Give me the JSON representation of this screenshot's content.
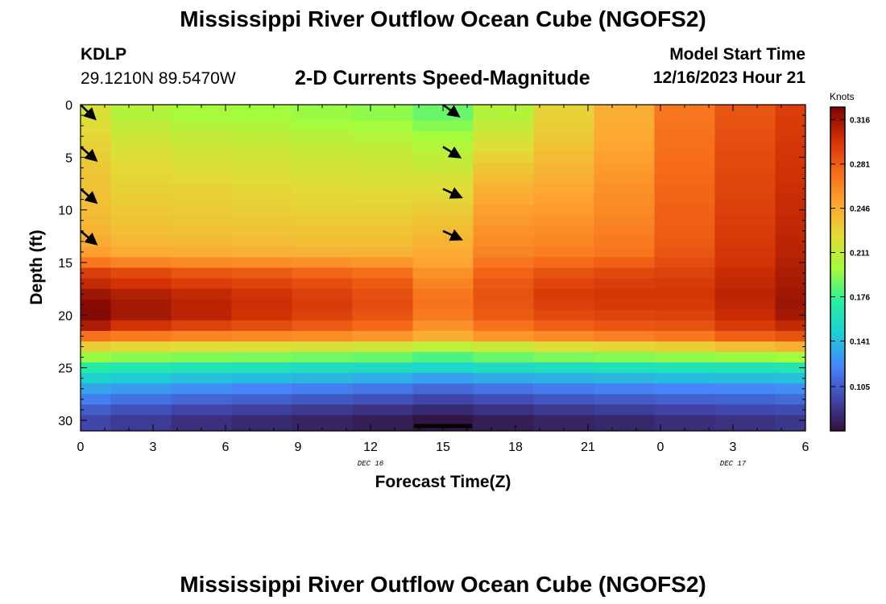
{
  "header": {
    "title": "Mississippi River Outflow Ocean Cube (NGOFS2)",
    "station": "KDLP",
    "location": "29.1210N  89.5470W",
    "model_start_label": "Model Start Time",
    "model_start_value": "12/16/2023 Hour 21"
  },
  "footer": {
    "title": "Mississippi River Outflow Ocean Cube (NGOFS2)"
  },
  "chart_data": {
    "type": "heatmap",
    "title": "2-D Currents Speed-Magnitude",
    "xlabel": "Forecast Time(Z)",
    "ylabel": "Depth (ft)",
    "x_tick_labels": [
      "0",
      "3",
      "6",
      "9",
      "12",
      "15",
      "18",
      "21",
      "0",
      "3",
      "6"
    ],
    "x_range_hours": [
      0,
      30
    ],
    "date_labels": [
      {
        "text": "DEC 16",
        "hour": 12
      },
      {
        "text": "DEC 17",
        "hour": 27
      }
    ],
    "y_tick_labels": [
      "0",
      "5",
      "10",
      "15",
      "20",
      "25",
      "30"
    ],
    "ylim": [
      0,
      31
    ],
    "y_inverted": true,
    "colorbar": {
      "unit_label": "Knots",
      "tick_labels": [
        "0.316",
        "0.281",
        "0.246",
        "0.211",
        "0.176",
        "0.141",
        "0.105"
      ],
      "range": [
        0.07,
        0.326
      ],
      "colors": [
        "#30123b",
        "#4146ac",
        "#4686fa",
        "#1bcfd4",
        "#29ef9f",
        "#a3fc3c",
        "#e2dc38",
        "#fea632",
        "#f66b19",
        "#d23105",
        "#7a0403"
      ]
    },
    "time_columns_hours": [
      0,
      2.5,
      5,
      7.5,
      10,
      12.5,
      15,
      17.5,
      20,
      22.5,
      25,
      27.5,
      30
    ],
    "depth_rows_ft": [
      1,
      2,
      3,
      4,
      5,
      6,
      7,
      8,
      9,
      10,
      11,
      12,
      13,
      14,
      15,
      16,
      17,
      18,
      19,
      20,
      21,
      22,
      23,
      24,
      25,
      26,
      27,
      28,
      29,
      30
    ],
    "speed_knots": [
      [
        0.22,
        0.205,
        0.2,
        0.198,
        0.196,
        0.194,
        0.186,
        0.205,
        0.228,
        0.245,
        0.27,
        0.285,
        0.295
      ],
      [
        0.223,
        0.21,
        0.205,
        0.203,
        0.2,
        0.198,
        0.192,
        0.21,
        0.23,
        0.246,
        0.271,
        0.286,
        0.296
      ],
      [
        0.226,
        0.215,
        0.211,
        0.209,
        0.206,
        0.204,
        0.198,
        0.216,
        0.233,
        0.248,
        0.272,
        0.287,
        0.297
      ],
      [
        0.229,
        0.219,
        0.215,
        0.213,
        0.211,
        0.209,
        0.204,
        0.222,
        0.236,
        0.25,
        0.273,
        0.288,
        0.298
      ],
      [
        0.231,
        0.222,
        0.219,
        0.217,
        0.215,
        0.213,
        0.209,
        0.228,
        0.239,
        0.252,
        0.274,
        0.289,
        0.299
      ],
      [
        0.233,
        0.225,
        0.222,
        0.22,
        0.218,
        0.217,
        0.214,
        0.234,
        0.242,
        0.254,
        0.275,
        0.29,
        0.3
      ],
      [
        0.235,
        0.227,
        0.225,
        0.223,
        0.221,
        0.22,
        0.219,
        0.239,
        0.245,
        0.256,
        0.276,
        0.291,
        0.301
      ],
      [
        0.236,
        0.229,
        0.228,
        0.226,
        0.224,
        0.223,
        0.223,
        0.244,
        0.248,
        0.258,
        0.277,
        0.292,
        0.302
      ],
      [
        0.237,
        0.231,
        0.23,
        0.228,
        0.227,
        0.226,
        0.227,
        0.248,
        0.251,
        0.26,
        0.278,
        0.293,
        0.303
      ],
      [
        0.238,
        0.233,
        0.232,
        0.23,
        0.229,
        0.229,
        0.231,
        0.252,
        0.254,
        0.262,
        0.279,
        0.294,
        0.304
      ],
      [
        0.24,
        0.235,
        0.234,
        0.233,
        0.232,
        0.232,
        0.235,
        0.255,
        0.257,
        0.264,
        0.28,
        0.295,
        0.305
      ],
      [
        0.243,
        0.238,
        0.237,
        0.236,
        0.235,
        0.235,
        0.239,
        0.258,
        0.26,
        0.266,
        0.281,
        0.296,
        0.306
      ],
      [
        0.246,
        0.241,
        0.24,
        0.239,
        0.238,
        0.238,
        0.243,
        0.261,
        0.263,
        0.268,
        0.282,
        0.297,
        0.307
      ],
      [
        0.252,
        0.247,
        0.245,
        0.244,
        0.243,
        0.243,
        0.246,
        0.264,
        0.266,
        0.27,
        0.284,
        0.298,
        0.308
      ],
      [
        0.27,
        0.265,
        0.262,
        0.26,
        0.258,
        0.256,
        0.25,
        0.27,
        0.275,
        0.28,
        0.288,
        0.3,
        0.31
      ],
      [
        0.295,
        0.29,
        0.285,
        0.282,
        0.278,
        0.274,
        0.258,
        0.278,
        0.286,
        0.29,
        0.293,
        0.303,
        0.312
      ],
      [
        0.305,
        0.3,
        0.295,
        0.292,
        0.288,
        0.282,
        0.265,
        0.283,
        0.292,
        0.295,
        0.296,
        0.305,
        0.313
      ],
      [
        0.316,
        0.31,
        0.305,
        0.3,
        0.294,
        0.287,
        0.27,
        0.286,
        0.296,
        0.298,
        0.298,
        0.307,
        0.315
      ],
      [
        0.322,
        0.314,
        0.308,
        0.302,
        0.296,
        0.288,
        0.271,
        0.285,
        0.294,
        0.297,
        0.297,
        0.306,
        0.316
      ],
      [
        0.323,
        0.314,
        0.307,
        0.3,
        0.293,
        0.285,
        0.268,
        0.282,
        0.29,
        0.292,
        0.293,
        0.303,
        0.314
      ],
      [
        0.312,
        0.3,
        0.293,
        0.288,
        0.282,
        0.276,
        0.258,
        0.272,
        0.28,
        0.284,
        0.286,
        0.296,
        0.305
      ],
      [
        0.272,
        0.268,
        0.264,
        0.262,
        0.26,
        0.256,
        0.246,
        0.256,
        0.262,
        0.266,
        0.27,
        0.28,
        0.286
      ],
      [
        0.23,
        0.226,
        0.223,
        0.222,
        0.22,
        0.216,
        0.208,
        0.214,
        0.222,
        0.226,
        0.23,
        0.238,
        0.244
      ],
      [
        0.196,
        0.193,
        0.191,
        0.19,
        0.188,
        0.186,
        0.18,
        0.186,
        0.19,
        0.192,
        0.194,
        0.196,
        0.198
      ],
      [
        0.168,
        0.165,
        0.162,
        0.16,
        0.158,
        0.156,
        0.152,
        0.156,
        0.158,
        0.16,
        0.162,
        0.163,
        0.164
      ],
      [
        0.15,
        0.146,
        0.142,
        0.14,
        0.138,
        0.135,
        0.13,
        0.134,
        0.136,
        0.138,
        0.14,
        0.141,
        0.142
      ],
      [
        0.132,
        0.128,
        0.124,
        0.121,
        0.118,
        0.115,
        0.11,
        0.114,
        0.117,
        0.119,
        0.121,
        0.122,
        0.124
      ],
      [
        0.118,
        0.113,
        0.109,
        0.106,
        0.103,
        0.1,
        0.095,
        0.099,
        0.102,
        0.104,
        0.106,
        0.108,
        0.11
      ],
      [
        0.105,
        0.1,
        0.095,
        0.092,
        0.089,
        0.086,
        0.082,
        0.086,
        0.089,
        0.091,
        0.094,
        0.096,
        0.098
      ],
      [
        0.095,
        0.09,
        0.085,
        0.082,
        0.079,
        0.076,
        0.072,
        0.076,
        0.079,
        0.081,
        0.084,
        0.086,
        0.088
      ]
    ],
    "vectors": [
      {
        "hour": 0,
        "depth": 0,
        "dx": 0.6,
        "dy": 1.35
      },
      {
        "hour": 0,
        "depth": 4,
        "dx": 0.65,
        "dy": 1.3
      },
      {
        "hour": 0,
        "depth": 8,
        "dx": 0.65,
        "dy": 1.3
      },
      {
        "hour": 0,
        "depth": 12,
        "dx": 0.65,
        "dy": 1.25
      },
      {
        "hour": 15,
        "depth": 0,
        "dx": 0.65,
        "dy": 1.1
      },
      {
        "hour": 15,
        "depth": 4,
        "dx": 0.7,
        "dy": 1.0
      },
      {
        "hour": 15,
        "depth": 8,
        "dx": 0.75,
        "dy": 0.8
      },
      {
        "hour": 15,
        "depth": 12,
        "dx": 0.75,
        "dy": 0.8
      }
    ],
    "nodata_bar": {
      "hour_start": 13.8,
      "hour_end": 16.2,
      "depth": 30.5
    }
  }
}
